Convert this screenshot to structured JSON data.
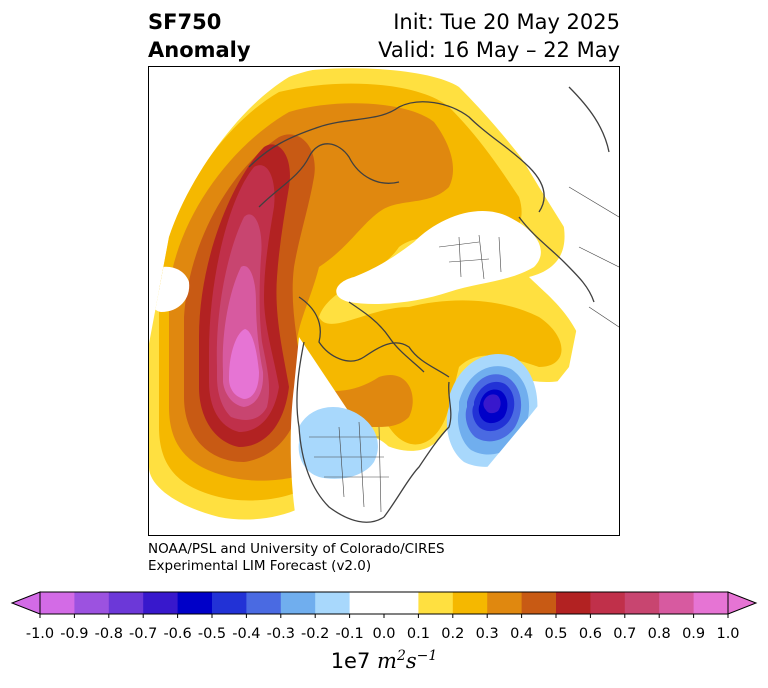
{
  "title": {
    "line1": "SF750",
    "line2": "Anomaly",
    "init": "Init: Tue 20 May 2025",
    "valid": "Valid: 16 May – 22 May"
  },
  "credit": {
    "line1": "NOAA/PSL and University of Colorado/CIRES",
    "line2": "Experimental LIM Forecast (v2.0)"
  },
  "colorbar": {
    "ticks": [
      "-1.0",
      "-0.9",
      "-0.8",
      "-0.7",
      "-0.6",
      "-0.5",
      "-0.4",
      "-0.3",
      "-0.2",
      "-0.1",
      "0.0",
      "0.1",
      "0.2",
      "0.3",
      "0.4",
      "0.5",
      "0.6",
      "0.7",
      "0.8",
      "0.9",
      "1.0"
    ],
    "colors": [
      "#d36be6",
      "#9c52e0",
      "#6c38d8",
      "#3818cc",
      "#0000c8",
      "#2232d6",
      "#4a6ae2",
      "#70aeee",
      "#a8d8fc",
      "#ffffff",
      "#ffffff",
      "#ffe040",
      "#f5b800",
      "#e0880f",
      "#c85a14",
      "#b22222",
      "#c0304a",
      "#c84570",
      "#d75aa0",
      "#e674d4"
    ],
    "extend_low_color": "#d36be6",
    "extend_high_color": "#e674d4",
    "unit_base": "1e7",
    "unit_m": "m",
    "unit_m_exp": "2",
    "unit_s": "s",
    "unit_s_exp": "−1"
  },
  "map": {
    "projection": "polar stereographic (North America / Arctic)",
    "features": [
      {
        "name": "positive anomaly core",
        "region": "northeast Pacific off western Canada",
        "max_value": 1.0
      },
      {
        "name": "negative anomaly core",
        "region": "northwest Atlantic off Canadian Maritimes",
        "min_value": -0.6
      },
      {
        "name": "weak negative anomaly",
        "region": "western United States",
        "min_value": -0.2
      },
      {
        "name": "positive anomaly belt",
        "region": "Arctic / Siberia / Greenland",
        "max_value": 0.4
      }
    ]
  }
}
